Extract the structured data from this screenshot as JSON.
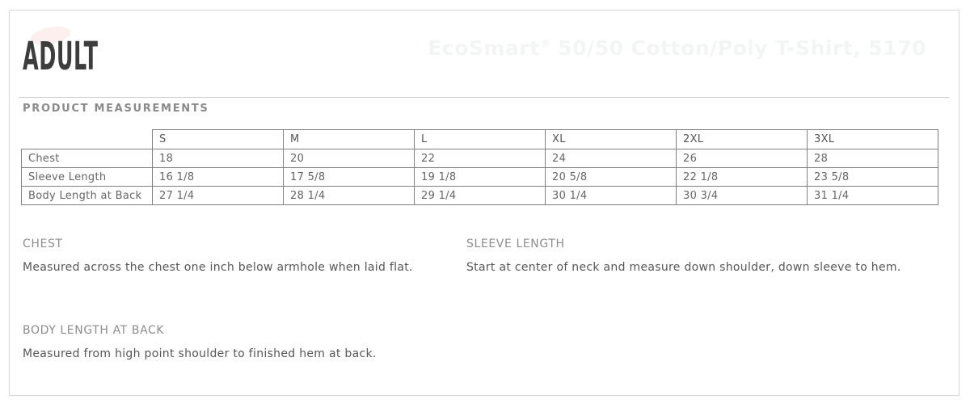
{
  "header": {
    "title": "ADULT",
    "product_title": {
      "brand": "EcoSmart",
      "reg": "®",
      "rest": " 50/50 Cotton/Poly T-Shirt, 5170"
    },
    "section_title": "PRODUCT MEASUREMENTS"
  },
  "measurements_table": {
    "size_columns": [
      "S",
      "M",
      "L",
      "XL",
      "2XL",
      "3XL"
    ],
    "rows": [
      {
        "label": "Chest",
        "values": [
          "18",
          "20",
          "22",
          "24",
          "26",
          "28"
        ]
      },
      {
        "label": "Sleeve Length",
        "values": [
          "16 1/8",
          "17 5/8",
          "19 1/8",
          "20 5/8",
          "22 1/8",
          "23 5/8"
        ]
      },
      {
        "label": "Body Length at Back",
        "values": [
          "27 1/4",
          "28 1/4",
          "29 1/4",
          "30 1/4",
          "30 3/4",
          "31 1/4"
        ]
      }
    ]
  },
  "definitions": [
    {
      "term": "CHEST",
      "description": "Measured across the chest one inch below armhole when laid flat."
    },
    {
      "term": "SLEEVE LENGTH",
      "description": "Start at center of neck and measure down shoulder, down sleeve to hem."
    },
    {
      "term": "BODY LENGTH AT BACK",
      "description": "Measured from high point shoulder to finished hem at back."
    }
  ],
  "colors": {
    "heading_text": "#3d3d3d",
    "section_title": "#8a8a8a",
    "table_border": "#808080",
    "table_text": "#666666",
    "term_text": "#8d8d8d",
    "description_text": "#565656",
    "frame_border": "#d8d8d8",
    "watermark_text": "#f3f4f4",
    "logo_pink": "#fcefee"
  }
}
